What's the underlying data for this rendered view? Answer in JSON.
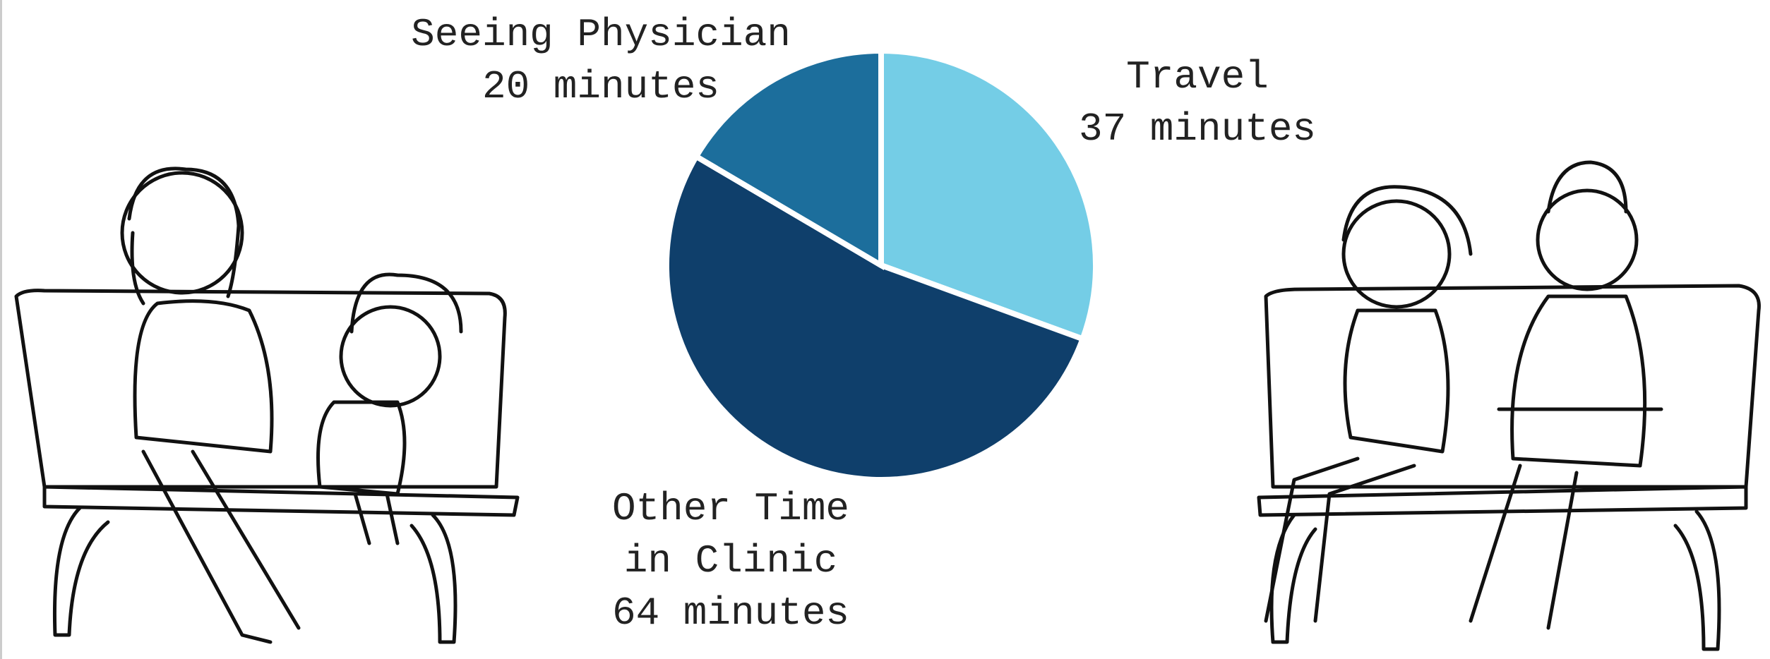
{
  "chart_data": {
    "type": "pie",
    "categories": [
      "Travel",
      "Other Time in Clinic",
      "Seeing Physician"
    ],
    "values": [
      37,
      64,
      20
    ],
    "value_labels": [
      "37 minutes",
      "64 minutes",
      "20 minutes"
    ],
    "colors": [
      "#74cde6",
      "#0f3f6b",
      "#1c6e9c"
    ]
  }
}
